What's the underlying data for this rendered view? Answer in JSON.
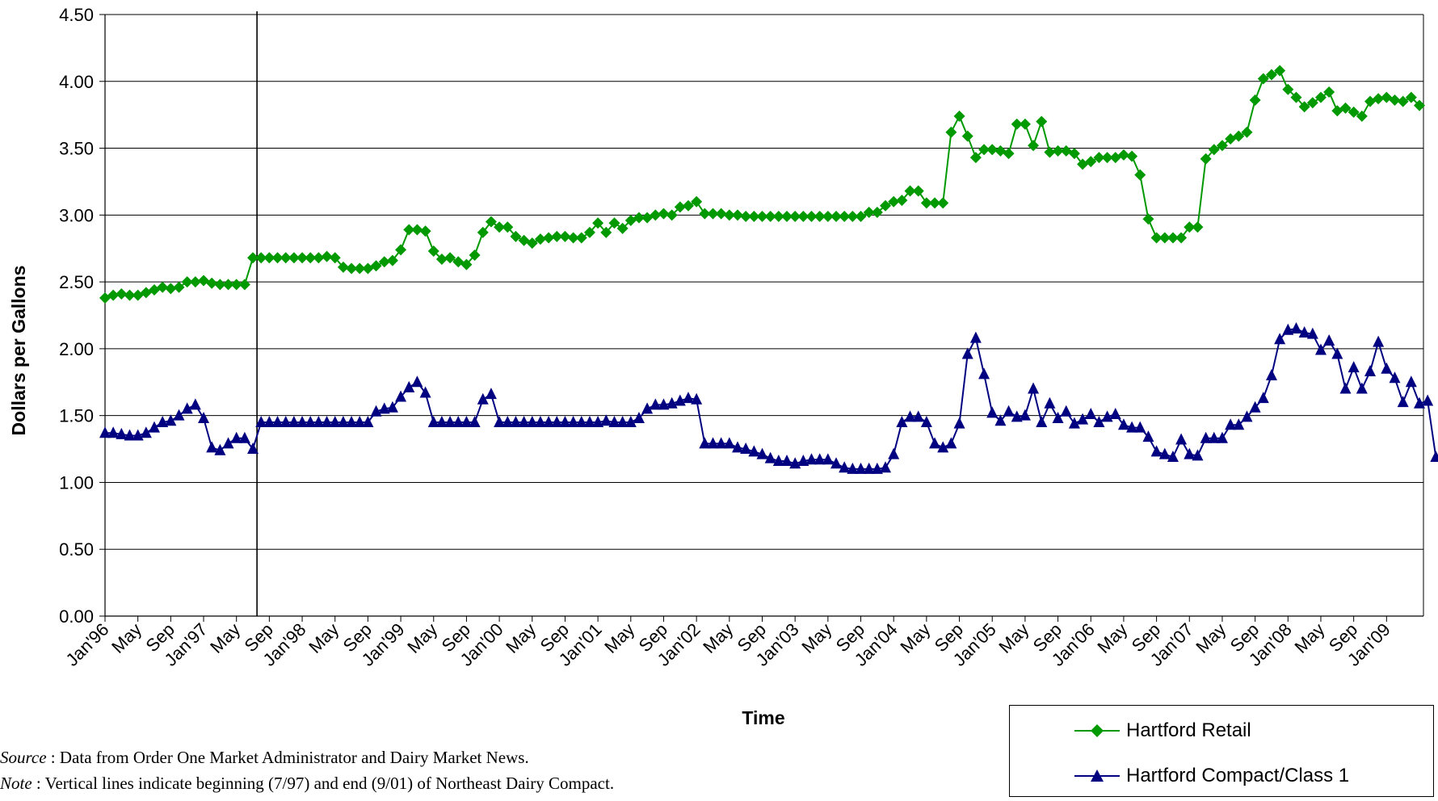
{
  "chart_data": {
    "type": "line",
    "title": "",
    "xlabel": "Time",
    "ylabel": "Dollars per Gallons",
    "ylim": [
      0,
      4.5
    ],
    "yticks": [
      "0.00",
      "0.50",
      "1.00",
      "1.50",
      "2.00",
      "2.50",
      "3.00",
      "3.50",
      "4.00",
      "4.50"
    ],
    "x_start": "Jan'96",
    "xtick_labels": [
      "Jan'96",
      "May",
      "Sep",
      "Jan'97",
      "May",
      "Sep",
      "Jan'98",
      "May",
      "Sep",
      "Jan'99",
      "May",
      "Sep",
      "Jan'00",
      "May",
      "Sep",
      "Jan'01",
      "May",
      "Sep",
      "Jan'02",
      "May",
      "Sep",
      "Jan'03",
      "May",
      "Sep",
      "Jan'04",
      "May",
      "Sep",
      "Jan'05",
      "May",
      "Sep",
      "Jan'06",
      "May",
      "Sep",
      "Jan'07",
      "May",
      "Sep",
      "Jan'08",
      "May",
      "Sep",
      "Jan'09"
    ],
    "vertical_lines": [
      "7/97",
      "9/01"
    ],
    "grid": "horizontal",
    "legend_position": "bottom-right",
    "series": [
      {
        "name": "Hartford Retail",
        "color": "#009900",
        "marker": "diamond",
        "values": [
          2.38,
          2.4,
          2.41,
          2.4,
          2.4,
          2.42,
          2.44,
          2.46,
          2.45,
          2.46,
          2.5,
          2.5,
          2.51,
          2.49,
          2.48,
          2.48,
          2.48,
          2.48,
          2.68,
          2.68,
          2.68,
          2.68,
          2.68,
          2.68,
          2.68,
          2.68,
          2.68,
          2.69,
          2.68,
          2.61,
          2.6,
          2.6,
          2.6,
          2.62,
          2.65,
          2.66,
          2.74,
          2.89,
          2.89,
          2.88,
          2.73,
          2.67,
          2.68,
          2.65,
          2.63,
          2.7,
          2.87,
          2.95,
          2.91,
          2.91,
          2.84,
          2.81,
          2.79,
          2.82,
          2.83,
          2.84,
          2.84,
          2.83,
          2.83,
          2.87,
          2.94,
          2.87,
          2.94,
          2.9,
          2.96,
          2.98,
          2.98,
          3.0,
          3.01,
          3.0,
          3.06,
          3.07,
          3.1,
          3.01,
          3.01,
          3.01,
          3.0,
          3.0,
          2.99,
          2.99,
          2.99,
          2.99,
          2.99,
          2.99,
          2.99,
          2.99,
          2.99,
          2.99,
          2.99,
          2.99,
          2.99,
          2.99,
          2.99,
          3.02,
          3.02,
          3.07,
          3.1,
          3.11,
          3.18,
          3.18,
          3.09,
          3.09,
          3.09,
          3.62,
          3.74,
          3.59,
          3.43,
          3.49,
          3.49,
          3.48,
          3.46,
          3.68,
          3.68,
          3.52,
          3.7,
          3.47,
          3.48,
          3.48,
          3.46,
          3.38,
          3.4,
          3.43,
          3.43,
          3.43,
          3.45,
          3.44,
          3.3,
          2.97,
          2.83,
          2.83,
          2.83,
          2.83,
          2.91,
          2.91,
          3.42,
          3.49,
          3.52,
          3.57,
          3.59,
          3.62,
          3.86,
          4.02,
          4.05,
          4.08,
          3.94,
          3.88,
          3.81,
          3.84,
          3.88,
          3.92,
          3.78,
          3.8,
          3.77,
          3.74,
          3.85,
          3.87,
          3.88,
          3.86,
          3.85,
          3.88,
          3.82
        ]
      },
      {
        "name": "Hartford Compact/Class 1",
        "color": "#000080",
        "marker": "triangle",
        "values": [
          1.37,
          1.37,
          1.36,
          1.35,
          1.35,
          1.37,
          1.41,
          1.45,
          1.46,
          1.5,
          1.55,
          1.58,
          1.48,
          1.26,
          1.24,
          1.29,
          1.33,
          1.33,
          1.25,
          1.45,
          1.45,
          1.45,
          1.45,
          1.45,
          1.45,
          1.45,
          1.45,
          1.45,
          1.45,
          1.45,
          1.45,
          1.45,
          1.45,
          1.53,
          1.55,
          1.56,
          1.64,
          1.71,
          1.75,
          1.67,
          1.45,
          1.45,
          1.45,
          1.45,
          1.45,
          1.45,
          1.62,
          1.66,
          1.45,
          1.45,
          1.45,
          1.45,
          1.45,
          1.45,
          1.45,
          1.45,
          1.45,
          1.45,
          1.45,
          1.45,
          1.45,
          1.46,
          1.45,
          1.45,
          1.45,
          1.48,
          1.55,
          1.58,
          1.58,
          1.59,
          1.61,
          1.63,
          1.62,
          1.29,
          1.29,
          1.29,
          1.29,
          1.26,
          1.25,
          1.23,
          1.21,
          1.18,
          1.16,
          1.16,
          1.14,
          1.16,
          1.17,
          1.17,
          1.17,
          1.14,
          1.11,
          1.1,
          1.1,
          1.1,
          1.1,
          1.11,
          1.21,
          1.45,
          1.49,
          1.49,
          1.45,
          1.29,
          1.26,
          1.29,
          1.44,
          1.96,
          2.08,
          1.81,
          1.52,
          1.46,
          1.53,
          1.49,
          1.5,
          1.7,
          1.45,
          1.59,
          1.48,
          1.53,
          1.44,
          1.47,
          1.51,
          1.45,
          1.49,
          1.51,
          1.43,
          1.41,
          1.41,
          1.34,
          1.23,
          1.21,
          1.19,
          1.32,
          1.21,
          1.2,
          1.33,
          1.33,
          1.33,
          1.43,
          1.43,
          1.49,
          1.56,
          1.63,
          1.8,
          2.07,
          2.14,
          2.15,
          2.12,
          2.11,
          1.99,
          2.06,
          1.96,
          1.7,
          1.86,
          1.7,
          1.83,
          2.05,
          1.85,
          1.78,
          1.6,
          1.75,
          1.59,
          1.61,
          1.19
        ]
      }
    ]
  },
  "notes": {
    "source_label": "Source",
    "source_text": " : Data from Order One Market Administrator and Dairy Market News.",
    "note_label": "Note",
    "note_text": " : Vertical lines indicate beginning (7/97) and end (9/01) of Northeast Dairy Compact."
  },
  "legend": {
    "retail_label": "Hartford Retail",
    "compact_label": "Hartford Compact/Class 1"
  }
}
